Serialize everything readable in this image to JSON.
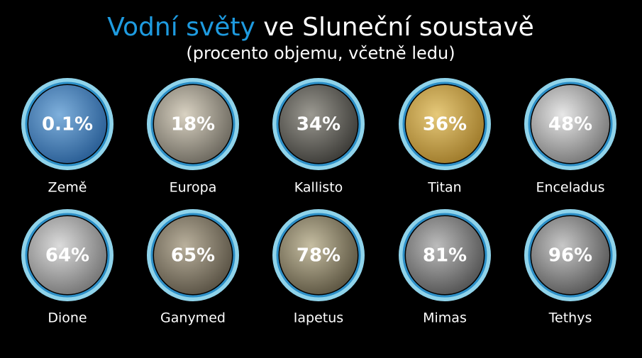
{
  "header": {
    "title_highlight": "Vodní světy",
    "title_rest": "ve Sluneční soustavě",
    "subtitle": "(procento objemu, včetně ledu)"
  },
  "items": [
    {
      "name": "Země",
      "value": "0.1%"
    },
    {
      "name": "Europa",
      "value": "18%"
    },
    {
      "name": "Kallisto",
      "value": "34%"
    },
    {
      "name": "Titan",
      "value": "36%"
    },
    {
      "name": "Enceladus",
      "value": "48%"
    },
    {
      "name": "Dione",
      "value": "64%"
    },
    {
      "name": "Ganymed",
      "value": "65%"
    },
    {
      "name": "Iapetus",
      "value": "78%"
    },
    {
      "name": "Mimas",
      "value": "81%"
    },
    {
      "name": "Tethys",
      "value": "96%"
    }
  ]
}
